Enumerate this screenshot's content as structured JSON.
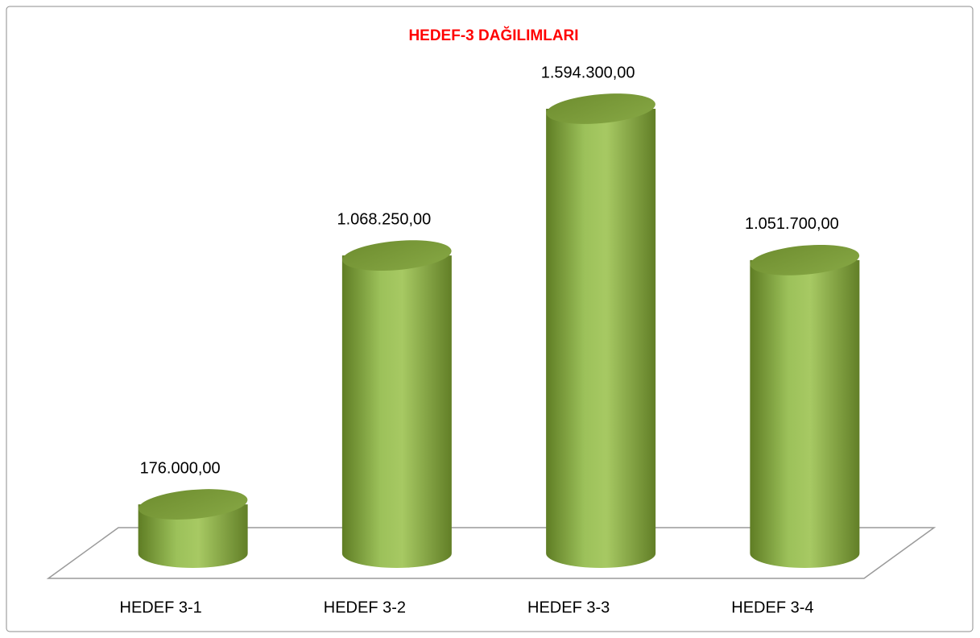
{
  "chart_data": {
    "type": "bar3d",
    "title": "HEDEF-3 DAĞILIMLARI",
    "categories": [
      "HEDEF 3-1",
      "HEDEF 3-2",
      "HEDEF 3-3",
      "HEDEF 3-4"
    ],
    "values": [
      176000,
      1068250,
      1594300,
      1051700
    ],
    "value_labels": [
      "176.000,00",
      "1.068.250,00",
      "1.594.300,00",
      "1.051.700,00"
    ],
    "color": "#9bbb59"
  }
}
